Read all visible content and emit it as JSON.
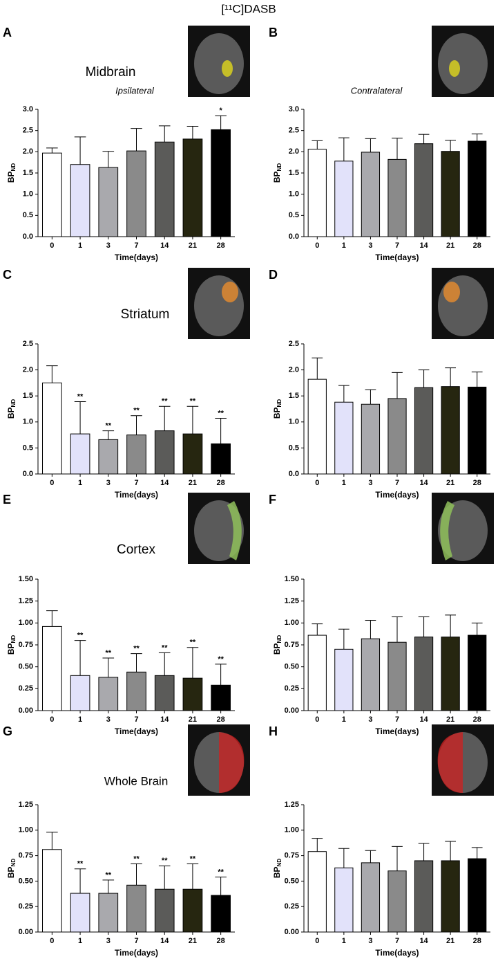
{
  "title": "[¹¹C]DASB",
  "chart_data": [
    {
      "type": "bar",
      "panel": "A",
      "title": "Midbrain",
      "subtitle": "Ipsilateral",
      "ylabel": "BP",
      "ylabel_sub": "ND",
      "xlabel": "Time(days)",
      "categories": [
        "0",
        "1",
        "3",
        "7",
        "14",
        "21",
        "28"
      ],
      "values": [
        1.97,
        1.7,
        1.63,
        2.02,
        2.23,
        2.3,
        2.52
      ],
      "errors": [
        0.12,
        0.65,
        0.38,
        0.53,
        0.38,
        0.3,
        0.33
      ],
      "annotations": [
        null,
        null,
        null,
        null,
        null,
        null,
        "*"
      ],
      "colors": [
        "#ffffff",
        "#e2e2fa",
        "#a9a9ad",
        "#8a8a8a",
        "#5b5b59",
        "#262610",
        "#000000"
      ],
      "ylim": [
        0,
        3
      ],
      "yticks": [
        {
          "value": 0,
          "label": "0.0"
        },
        0.5,
        {
          "value": 1,
          "label": "1.0"
        },
        1.5,
        {
          "value": 2,
          "label": "2.0"
        },
        2.5,
        {
          "value": 3,
          "label": "3.0"
        }
      ]
    },
    {
      "type": "bar",
      "panel": "B",
      "subtitle": "Contralateral",
      "ylabel": "BP",
      "ylabel_sub": "ND",
      "xlabel": "Time(days)",
      "categories": [
        "0",
        "1",
        "3",
        "7",
        "14",
        "21",
        "28"
      ],
      "values": [
        2.06,
        1.78,
        1.99,
        1.82,
        2.19,
        2.01,
        2.25
      ],
      "errors": [
        0.2,
        0.55,
        0.32,
        0.5,
        0.22,
        0.26,
        0.17
      ],
      "colors": [
        "#ffffff",
        "#e2e2fa",
        "#a9a9ad",
        "#8a8a8a",
        "#5b5b59",
        "#262610",
        "#000000"
      ],
      "ylim": [
        0,
        3
      ],
      "yticks": [
        {
          "value": 0,
          "label": "0.0"
        },
        0.5,
        {
          "value": 1,
          "label": "1.0"
        },
        1.5,
        {
          "value": 2,
          "label": "2.0"
        },
        2.5,
        {
          "value": 3,
          "label": "3.0"
        }
      ]
    },
    {
      "type": "bar",
      "panel": "C",
      "title": "Striatum",
      "ylabel": "BP",
      "ylabel_sub": "ND",
      "xlabel": "Time(days)",
      "categories": [
        "0",
        "1",
        "3",
        "7",
        "14",
        "21",
        "28"
      ],
      "values": [
        1.75,
        0.77,
        0.66,
        0.75,
        0.83,
        0.77,
        0.58
      ],
      "errors": [
        0.33,
        0.62,
        0.17,
        0.37,
        0.47,
        0.53,
        0.49
      ],
      "annotations": [
        null,
        "**",
        "**",
        "**",
        "**",
        "**",
        "**"
      ],
      "colors": [
        "#ffffff",
        "#e2e2fa",
        "#a9a9ad",
        "#8a8a8a",
        "#5b5b59",
        "#262610",
        "#000000"
      ],
      "ylim": [
        0,
        2.5
      ],
      "yticks": [
        {
          "value": 0,
          "label": "0.0"
        },
        0.5,
        {
          "value": 1,
          "label": "1.0"
        },
        1.5,
        {
          "value": 2,
          "label": "2.0"
        },
        2.5
      ]
    },
    {
      "type": "bar",
      "panel": "D",
      "ylabel": "BP",
      "ylabel_sub": "ND",
      "xlabel": "Time(days)",
      "categories": [
        "0",
        "1",
        "3",
        "7",
        "14",
        "21",
        "28"
      ],
      "values": [
        1.82,
        1.38,
        1.34,
        1.45,
        1.66,
        1.68,
        1.67
      ],
      "errors": [
        0.41,
        0.32,
        0.28,
        0.5,
        0.34,
        0.36,
        0.29
      ],
      "colors": [
        "#ffffff",
        "#e2e2fa",
        "#a9a9ad",
        "#8a8a8a",
        "#5b5b59",
        "#262610",
        "#000000"
      ],
      "ylim": [
        0,
        2.5
      ],
      "yticks": [
        {
          "value": 0,
          "label": "0.0"
        },
        0.5,
        {
          "value": 1,
          "label": "1.0"
        },
        1.5,
        {
          "value": 2,
          "label": "2.0"
        },
        2.5
      ]
    },
    {
      "type": "bar",
      "panel": "E",
      "title": "Cortex",
      "ylabel": "BP",
      "ylabel_sub": "ND",
      "xlabel": "Time(days)",
      "categories": [
        "0",
        "1",
        "3",
        "7",
        "14",
        "21",
        "28"
      ],
      "values": [
        0.96,
        0.4,
        0.38,
        0.44,
        0.4,
        0.37,
        0.29
      ],
      "errors": [
        0.18,
        0.4,
        0.22,
        0.21,
        0.26,
        0.35,
        0.24
      ],
      "annotations": [
        null,
        "**",
        "**",
        "**",
        "**",
        "**",
        "**"
      ],
      "colors": [
        "#ffffff",
        "#e2e2fa",
        "#a9a9ad",
        "#8a8a8a",
        "#5b5b59",
        "#262610",
        "#000000"
      ],
      "ylim": [
        0,
        1.5
      ],
      "yticks": [
        {
          "value": 0,
          "label": "0.00"
        },
        0.25,
        {
          "value": 0.5,
          "label": "0.50"
        },
        0.75,
        {
          "value": 1,
          "label": "1.00"
        },
        1.25,
        {
          "value": 1.5,
          "label": "1.50"
        }
      ]
    },
    {
      "type": "bar",
      "panel": "F",
      "ylabel": "BP",
      "ylabel_sub": "ND",
      "xlabel": "Time(days)",
      "categories": [
        "0",
        "1",
        "3",
        "7",
        "14",
        "21",
        "28"
      ],
      "values": [
        0.86,
        0.7,
        0.82,
        0.78,
        0.84,
        0.84,
        0.86
      ],
      "errors": [
        0.13,
        0.23,
        0.21,
        0.29,
        0.23,
        0.25,
        0.14
      ],
      "colors": [
        "#ffffff",
        "#e2e2fa",
        "#a9a9ad",
        "#8a8a8a",
        "#5b5b59",
        "#262610",
        "#000000"
      ],
      "ylim": [
        0,
        1.5
      ],
      "yticks": [
        {
          "value": 0,
          "label": "0.00"
        },
        0.25,
        {
          "value": 0.5,
          "label": "0.50"
        },
        0.75,
        {
          "value": 1,
          "label": "1.00"
        },
        1.25,
        {
          "value": 1.5,
          "label": "1.50"
        }
      ]
    },
    {
      "type": "bar",
      "panel": "G",
      "title": "Whole Brain",
      "ylabel": "BP",
      "ylabel_sub": "ND",
      "xlabel": "Time(days)",
      "categories": [
        "0",
        "1",
        "3",
        "7",
        "14",
        "21",
        "28"
      ],
      "values": [
        0.81,
        0.38,
        0.38,
        0.46,
        0.42,
        0.42,
        0.36
      ],
      "errors": [
        0.17,
        0.24,
        0.13,
        0.21,
        0.23,
        0.25,
        0.18
      ],
      "annotations": [
        null,
        "**",
        "**",
        "**",
        "**",
        "**",
        "**"
      ],
      "colors": [
        "#ffffff",
        "#e2e2fa",
        "#a9a9ad",
        "#8a8a8a",
        "#5b5b59",
        "#262610",
        "#000000"
      ],
      "ylim": [
        0,
        1.25
      ],
      "yticks": [
        {
          "value": 0,
          "label": "0.00"
        },
        0.25,
        {
          "value": 0.5,
          "label": "0.50"
        },
        0.75,
        {
          "value": 1,
          "label": "1.00"
        },
        1.25
      ]
    },
    {
      "type": "bar",
      "panel": "H",
      "ylabel": "BP",
      "ylabel_sub": "ND",
      "xlabel": "Time(days)",
      "categories": [
        "0",
        "1",
        "3",
        "7",
        "14",
        "21",
        "28"
      ],
      "values": [
        0.79,
        0.63,
        0.68,
        0.6,
        0.7,
        0.7,
        0.72
      ],
      "errors": [
        0.13,
        0.19,
        0.12,
        0.24,
        0.17,
        0.19,
        0.11
      ],
      "colors": [
        "#ffffff",
        "#e2e2fa",
        "#a9a9ad",
        "#8a8a8a",
        "#5b5b59",
        "#262610",
        "#000000"
      ],
      "ylim": [
        0,
        1.25
      ],
      "yticks": [
        {
          "value": 0,
          "label": "0.00"
        },
        0.25,
        {
          "value": 0.5,
          "label": "0.50"
        },
        0.75,
        {
          "value": 1,
          "label": "1.00"
        },
        1.25
      ]
    }
  ]
}
